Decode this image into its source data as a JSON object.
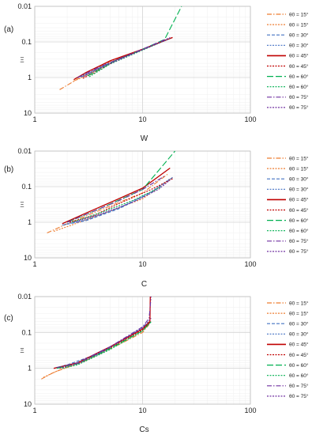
{
  "legend_labels": [
    "θ0 = 15°",
    "θ0 = 15°",
    "θ0 = 30°",
    "θ0 = 30°",
    "θ0 = 45°",
    "θ0 = 45°",
    "θ0 = 60°",
    "θ0 = 60°",
    "θ0 = 75°",
    "θ0 = 75°"
  ],
  "legend_styles": [
    {
      "color": "#ED7D31",
      "dash": "6 2 1.5 2"
    },
    {
      "color": "#ED7D31",
      "dash": "2 1.5"
    },
    {
      "color": "#4472C4",
      "dash": "4 2"
    },
    {
      "color": "#4472C4",
      "dash": "2 1.5"
    },
    {
      "color": "#C00000",
      "dash": ""
    },
    {
      "color": "#C00000",
      "dash": "2 1.5"
    },
    {
      "color": "#00B050",
      "dash": "8 3"
    },
    {
      "color": "#00B050",
      "dash": "2 1.5"
    },
    {
      "color": "#7030A0",
      "dash": "6 2 1.5 2"
    },
    {
      "color": "#7030A0",
      "dash": "2 1.5"
    }
  ],
  "chart_data": [
    {
      "type": "line",
      "panel_label": "(a)",
      "xlabel": "W",
      "ylabel": "Ξ",
      "x_scale": "log",
      "y_scale": "log",
      "y_inverted": true,
      "xlim": [
        1,
        100
      ],
      "ylim": [
        0.01,
        10
      ],
      "x_tick_labels": [
        "1",
        "10",
        "100"
      ],
      "y_tick_labels": [
        "0.01",
        "0.1",
        "1",
        "10"
      ],
      "grid": true,
      "legend": "right",
      "series": [
        {
          "name": "θ0 = 15°",
          "points": [
            [
              1.7,
              2.2
            ],
            [
              2.5,
              1.1
            ],
            [
              5,
              0.35
            ],
            [
              10,
              0.16
            ],
            [
              17,
              0.085
            ]
          ]
        },
        {
          "name": "θ0 = 15°",
          "points": [
            [
              2.3,
              1.25
            ],
            [
              3,
              0.9
            ],
            [
              5,
              0.38
            ],
            [
              10,
              0.165
            ],
            [
              18,
              0.08
            ]
          ]
        },
        {
          "name": "θ0 = 30°",
          "points": [
            [
              2.4,
              1.05
            ],
            [
              3,
              0.85
            ],
            [
              5,
              0.38
            ],
            [
              10,
              0.165
            ],
            [
              18,
              0.08
            ]
          ]
        },
        {
          "name": "θ0 = 30°",
          "points": [
            [
              2.5,
              1.0
            ],
            [
              3.3,
              0.7
            ],
            [
              6,
              0.3
            ],
            [
              10,
              0.165
            ],
            [
              18,
              0.08
            ]
          ]
        },
        {
          "name": "θ0 = 45°",
          "points": [
            [
              2.3,
              1.15
            ],
            [
              3,
              0.72
            ],
            [
              5,
              0.34
            ],
            [
              10,
              0.16
            ],
            [
              19,
              0.075
            ]
          ]
        },
        {
          "name": "θ0 = 45°",
          "points": [
            [
              2.8,
              1.05
            ],
            [
              3.5,
              0.75
            ],
            [
              6,
              0.3
            ],
            [
              10,
              0.16
            ],
            [
              19,
              0.075
            ]
          ]
        },
        {
          "name": "θ0 = 60°",
          "points": [
            [
              3.1,
              0.9
            ],
            [
              5,
              0.4
            ],
            [
              10,
              0.16
            ],
            [
              16,
              0.085
            ],
            [
              23,
              0.01
            ]
          ]
        },
        {
          "name": "θ0 = 60°",
          "points": [
            [
              3.2,
              0.95
            ],
            [
              5,
              0.42
            ],
            [
              10,
              0.17
            ],
            [
              18,
              0.08
            ]
          ]
        },
        {
          "name": "θ0 = 75°",
          "points": [
            [
              2.5,
              1.0
            ],
            [
              4,
              0.5
            ],
            [
              10,
              0.16
            ],
            [
              18,
              0.075
            ]
          ]
        },
        {
          "name": "θ0 = 75°",
          "points": [
            [
              2.8,
              0.95
            ],
            [
              4,
              0.55
            ],
            [
              10,
              0.165
            ],
            [
              18,
              0.08
            ]
          ]
        }
      ]
    },
    {
      "type": "line",
      "panel_label": "(b)",
      "xlabel": "C",
      "ylabel": "Ξ",
      "x_scale": "log",
      "y_scale": "log",
      "y_inverted": true,
      "xlim": [
        1,
        100
      ],
      "ylim": [
        0.01,
        10
      ],
      "x_tick_labels": [
        "1",
        "10",
        "100"
      ],
      "y_tick_labels": [
        "0.01",
        "0.1",
        "1",
        "10"
      ],
      "grid": true,
      "legend": "right",
      "series": [
        {
          "name": "θ0 = 15°",
          "points": [
            [
              1.3,
              2.0
            ],
            [
              2,
              1.1
            ],
            [
              5,
              0.35
            ],
            [
              10,
              0.15
            ],
            [
              17,
              0.045
            ]
          ]
        },
        {
          "name": "θ0 = 15°",
          "points": [
            [
              1.5,
              1.8
            ],
            [
              2.2,
              1.2
            ],
            [
              5,
              0.48
            ],
            [
              10,
              0.22
            ],
            [
              19,
              0.055
            ]
          ]
        },
        {
          "name": "θ0 = 30°",
          "points": [
            [
              1.8,
              1.2
            ],
            [
              3,
              0.9
            ],
            [
              6,
              0.42
            ],
            [
              12,
              0.15
            ],
            [
              19,
              0.055
            ]
          ]
        },
        {
          "name": "θ0 = 30°",
          "points": [
            [
              1.9,
              1.15
            ],
            [
              3,
              0.85
            ],
            [
              6,
              0.4
            ],
            [
              12,
              0.14
            ],
            [
              18,
              0.06
            ]
          ]
        },
        {
          "name": "θ0 = 45°",
          "points": [
            [
              1.8,
              1.1
            ],
            [
              3,
              0.55
            ],
            [
              6,
              0.22
            ],
            [
              10,
              0.11
            ],
            [
              18,
              0.03
            ]
          ]
        },
        {
          "name": "θ0 = 45°",
          "points": [
            [
              2.1,
              1.0
            ],
            [
              3.5,
              0.65
            ],
            [
              6,
              0.3
            ],
            [
              12,
              0.12
            ],
            [
              19,
              0.06
            ]
          ]
        },
        {
          "name": "θ0 = 60°",
          "points": [
            [
              2,
              1.0
            ],
            [
              4,
              0.42
            ],
            [
              10,
              0.12
            ],
            [
              20,
              0.01
            ]
          ]
        },
        {
          "name": "θ0 = 60°",
          "points": [
            [
              2.2,
              1.0
            ],
            [
              4,
              0.55
            ],
            [
              8,
              0.25
            ],
            [
              15,
              0.1
            ]
          ]
        },
        {
          "name": "θ0 = 75°",
          "points": [
            [
              2,
              1.0
            ],
            [
              3,
              0.6
            ],
            [
              6,
              0.25
            ],
            [
              10,
              0.12
            ],
            [
              16,
              0.05
            ]
          ]
        },
        {
          "name": "θ0 = 75°",
          "points": [
            [
              2.3,
              1.0
            ],
            [
              4,
              0.6
            ],
            [
              8,
              0.28
            ],
            [
              14,
              0.12
            ],
            [
              18,
              0.065
            ]
          ]
        }
      ]
    },
    {
      "type": "line",
      "panel_label": "(c)",
      "xlabel": "Cs",
      "ylabel": "Ξ",
      "x_scale": "log",
      "y_scale": "log",
      "y_inverted": true,
      "xlim": [
        1,
        100
      ],
      "ylim": [
        0.01,
        10
      ],
      "x_tick_labels": [
        "1",
        "10",
        "100"
      ],
      "y_tick_labels": [
        "0.01",
        "0.1",
        "1",
        "10"
      ],
      "grid": true,
      "legend": "right",
      "series": [
        {
          "name": "θ0 = 15°",
          "points": [
            [
              1.15,
              2.0
            ],
            [
              1.5,
              1.3
            ],
            [
              3,
              0.6
            ],
            [
              6,
              0.22
            ],
            [
              10,
              0.1
            ],
            [
              11.5,
              0.06
            ]
          ]
        },
        {
          "name": "θ0 = 15°",
          "points": [
            [
              1.2,
              1.8
            ],
            [
              1.6,
              1.2
            ],
            [
              3,
              0.6
            ],
            [
              6,
              0.2
            ],
            [
              10,
              0.08
            ],
            [
              11.5,
              0.05
            ]
          ]
        },
        {
          "name": "θ0 = 30°",
          "points": [
            [
              1.5,
              1.0
            ],
            [
              2,
              0.8
            ],
            [
              4,
              0.38
            ],
            [
              8,
              0.11
            ],
            [
              11.8,
              0.05
            ]
          ]
        },
        {
          "name": "θ0 = 30°",
          "points": [
            [
              1.6,
              0.95
            ],
            [
              2.2,
              0.8
            ],
            [
              4,
              0.4
            ],
            [
              8,
              0.12
            ],
            [
              11.8,
              0.05
            ]
          ]
        },
        {
          "name": "θ0 = 45°",
          "points": [
            [
              1.5,
              1.0
            ],
            [
              2.5,
              0.7
            ],
            [
              5,
              0.25
            ],
            [
              10,
              0.08
            ],
            [
              11.7,
              0.05
            ],
            [
              11.8,
              0.01
            ]
          ]
        },
        {
          "name": "θ0 = 45°",
          "points": [
            [
              1.7,
              1.0
            ],
            [
              2.5,
              0.7
            ],
            [
              5,
              0.27
            ],
            [
              10,
              0.085
            ],
            [
              11.9,
              0.05
            ]
          ]
        },
        {
          "name": "θ0 = 60°",
          "points": [
            [
              1.6,
              1.0
            ],
            [
              2.5,
              0.75
            ],
            [
              5,
              0.28
            ],
            [
              10,
              0.09
            ],
            [
              12,
              0.05
            ]
          ]
        },
        {
          "name": "θ0 = 60°",
          "points": [
            [
              1.8,
              1.0
            ],
            [
              2.5,
              0.8
            ],
            [
              5,
              0.3
            ],
            [
              10,
              0.09
            ],
            [
              12,
              0.05
            ]
          ]
        },
        {
          "name": "θ0 = 75°",
          "points": [
            [
              1.6,
              0.95
            ],
            [
              2.5,
              0.7
            ],
            [
              5,
              0.25
            ],
            [
              10,
              0.07
            ],
            [
              11.5,
              0.04
            ],
            [
              12,
              0.01
            ]
          ]
        },
        {
          "name": "θ0 = 75°",
          "points": [
            [
              1.8,
              0.95
            ],
            [
              2.6,
              0.72
            ],
            [
              5,
              0.26
            ],
            [
              10,
              0.075
            ],
            [
              12,
              0.04
            ]
          ]
        }
      ]
    }
  ]
}
